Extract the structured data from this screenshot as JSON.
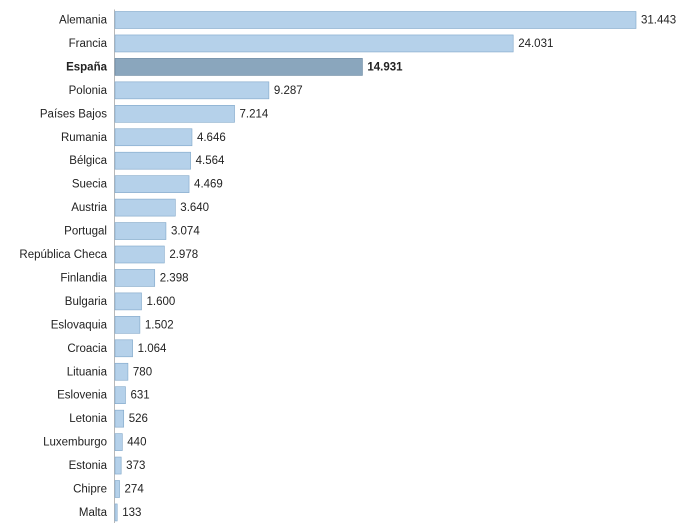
{
  "chart_data": {
    "type": "bar",
    "orientation": "horizontal",
    "categories": [
      "Alemania",
      "Francia",
      "España",
      "Polonia",
      "Países Bajos",
      "Rumania",
      "Bélgica",
      "Suecia",
      "Austria",
      "Portugal",
      "República Checa",
      "Finlandia",
      "Bulgaria",
      "Eslovaquia",
      "Croacia",
      "Lituania",
      "Eslovenia",
      "Letonia",
      "Luxemburgo",
      "Estonia",
      "Chipre",
      "Malta"
    ],
    "values": [
      31443,
      24031,
      14931,
      9287,
      7214,
      4646,
      4564,
      4469,
      3640,
      3074,
      2978,
      2398,
      1600,
      1502,
      1064,
      780,
      631,
      526,
      440,
      373,
      274,
      133
    ],
    "value_labels": [
      "31.443",
      "24.031",
      "14.931",
      "9.287",
      "7.214",
      "4.646",
      "4.564",
      "4.469",
      "3.640",
      "3.074",
      "2.978",
      "2.398",
      "1.600",
      "1.502",
      "1.064",
      "780",
      "631",
      "526",
      "440",
      "373",
      "274",
      "133"
    ],
    "highlight": "España",
    "colors": {
      "bar": "#b5d1ea",
      "bar_stroke": "#7fa6c8",
      "highlight": "#8aa6bd",
      "highlight_stroke": "#61819c",
      "axis": "#b8b8b8"
    },
    "xlim": [
      0,
      31443
    ],
    "grid": false,
    "legend": "none"
  }
}
